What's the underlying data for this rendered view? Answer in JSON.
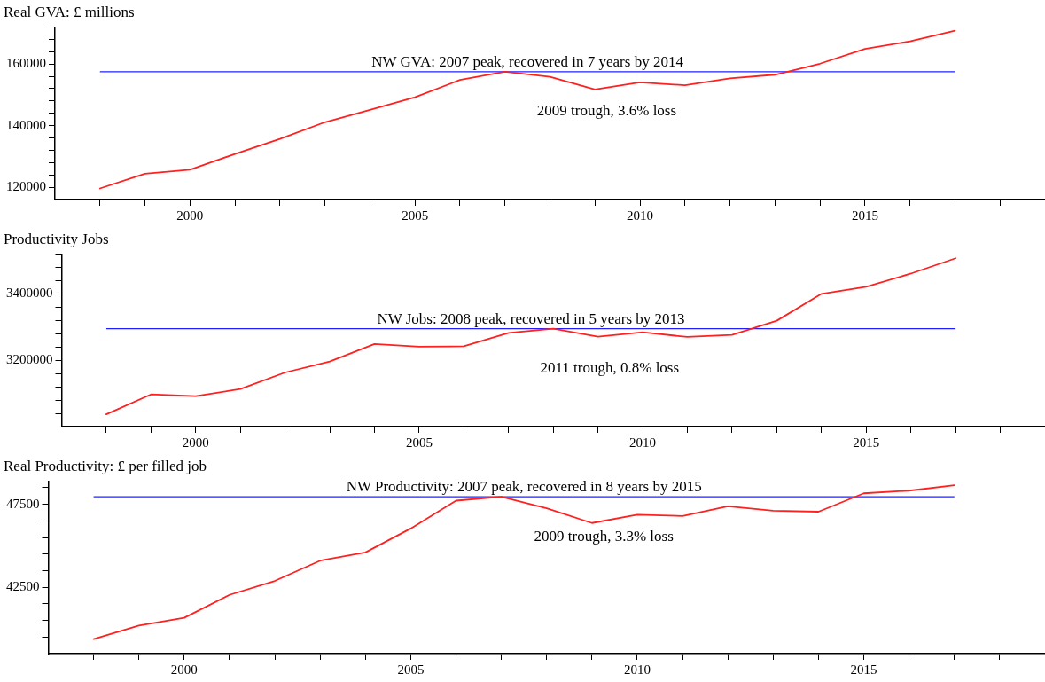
{
  "chart_data": [
    {
      "type": "line",
      "title": "Real GVA: £ millions",
      "x": [
        1998,
        1999,
        2000,
        2001,
        2002,
        2003,
        2004,
        2005,
        2006,
        2007,
        2008,
        2009,
        2010,
        2011,
        2012,
        2013,
        2014,
        2015,
        2016,
        2017
      ],
      "series": [
        {
          "color": "#ff2020",
          "values": [
            119600,
            124400,
            125700,
            130800,
            135700,
            141100,
            145100,
            149200,
            154800,
            157500,
            155800,
            151700,
            154000,
            153100,
            155300,
            156500,
            160100,
            164900,
            167300,
            170800
          ]
        }
      ],
      "xlim": [
        1997,
        2019
      ],
      "xticks": [
        {
          "value": 1998,
          "label": null
        },
        {
          "value": 1999,
          "label": null
        },
        2000,
        {
          "value": 2001,
          "label": null
        },
        {
          "value": 2002,
          "label": null
        },
        {
          "value": 2003,
          "label": null
        },
        {
          "value": 2004,
          "label": null
        },
        2005,
        {
          "value": 2006,
          "label": null
        },
        {
          "value": 2007,
          "label": null
        },
        {
          "value": 2008,
          "label": null
        },
        {
          "value": 2009,
          "label": null
        },
        2010,
        {
          "value": 2011,
          "label": null
        },
        {
          "value": 2012,
          "label": null
        },
        {
          "value": 2013,
          "label": null
        },
        {
          "value": 2014,
          "label": null
        },
        2015,
        {
          "value": 2016,
          "label": null
        },
        {
          "value": 2017,
          "label": null
        },
        {
          "value": 2018,
          "label": null
        }
      ],
      "ylim": [
        116000,
        172000
      ],
      "yticks": [
        120000,
        {
          "value": 124000,
          "label": null
        },
        {
          "value": 128000,
          "label": null
        },
        {
          "value": 132000,
          "label": null
        },
        {
          "value": 136000,
          "label": null
        },
        140000,
        {
          "value": 144000,
          "label": null
        },
        {
          "value": 148000,
          "label": null
        },
        {
          "value": 152000,
          "label": null
        },
        {
          "value": 156000,
          "label": null
        },
        160000,
        {
          "value": 164000,
          "label": null
        },
        {
          "value": 168000,
          "label": null
        },
        {
          "value": 172000,
          "label": null
        }
      ],
      "ref_lines": [
        {
          "axis": "y",
          "value": 157500,
          "color": "#2020ff"
        }
      ],
      "annotations": [
        "NW GVA: 2007 peak, recovered in 7 years by 2014",
        "2009 trough, 3.6% loss"
      ],
      "grid": false,
      "legend": false,
      "marker": "none",
      "line_style": "solid"
    },
    {
      "type": "line",
      "title": "Productivity Jobs",
      "x": [
        1998,
        1999,
        2000,
        2001,
        2002,
        2003,
        2004,
        2005,
        2006,
        2007,
        2008,
        2009,
        2010,
        2011,
        2012,
        2013,
        2014,
        2015,
        2016,
        2017
      ],
      "series": [
        {
          "color": "#ff2020",
          "values": [
            3037000,
            3097000,
            3092000,
            3113000,
            3163000,
            3196000,
            3249000,
            3241000,
            3242000,
            3282000,
            3295000,
            3271000,
            3284000,
            3270000,
            3276000,
            3319000,
            3400000,
            3421000,
            3461000,
            3507000
          ]
        }
      ],
      "xlim": [
        1997,
        2019
      ],
      "xticks": [
        {
          "value": 1998,
          "label": null
        },
        {
          "value": 1999,
          "label": null
        },
        2000,
        {
          "value": 2001,
          "label": null
        },
        {
          "value": 2002,
          "label": null
        },
        {
          "value": 2003,
          "label": null
        },
        {
          "value": 2004,
          "label": null
        },
        2005,
        {
          "value": 2006,
          "label": null
        },
        {
          "value": 2007,
          "label": null
        },
        {
          "value": 2008,
          "label": null
        },
        {
          "value": 2009,
          "label": null
        },
        2010,
        {
          "value": 2011,
          "label": null
        },
        {
          "value": 2012,
          "label": null
        },
        {
          "value": 2013,
          "label": null
        },
        {
          "value": 2014,
          "label": null
        },
        2015,
        {
          "value": 2016,
          "label": null
        },
        {
          "value": 2017,
          "label": null
        },
        {
          "value": 2018,
          "label": null
        }
      ],
      "ylim": [
        3000000,
        3520000
      ],
      "yticks": [
        {
          "value": 3040000,
          "label": null
        },
        {
          "value": 3080000,
          "label": null
        },
        {
          "value": 3120000,
          "label": null
        },
        {
          "value": 3160000,
          "label": null
        },
        3200000,
        {
          "value": 3240000,
          "label": null
        },
        {
          "value": 3280000,
          "label": null
        },
        {
          "value": 3320000,
          "label": null
        },
        {
          "value": 3360000,
          "label": null
        },
        3400000,
        {
          "value": 3440000,
          "label": null
        },
        {
          "value": 3480000,
          "label": null
        },
        {
          "value": 3520000,
          "label": null
        }
      ],
      "ref_lines": [
        {
          "axis": "y",
          "value": 3295000,
          "color": "#2020ff"
        }
      ],
      "annotations": [
        "NW Jobs: 2008 peak, recovered in 5 years by 2013",
        "2011 trough, 0.8% loss"
      ],
      "grid": false,
      "legend": false,
      "marker": "none",
      "line_style": "solid"
    },
    {
      "type": "line",
      "title": "Real Productivity: £ per filled job",
      "x": [
        1998,
        1999,
        2000,
        2001,
        2002,
        2003,
        2004,
        2005,
        2006,
        2007,
        2008,
        2009,
        2010,
        2011,
        2012,
        2013,
        2014,
        2015,
        2016,
        2017
      ],
      "series": [
        {
          "color": "#ff2020",
          "values": [
            39380,
            40190,
            40660,
            42040,
            42880,
            44100,
            44600,
            46040,
            47720,
            47950,
            47260,
            46370,
            46870,
            46790,
            47380,
            47110,
            47050,
            48160,
            48320,
            48650
          ]
        }
      ],
      "xlim": [
        1997,
        2019
      ],
      "xticks": [
        {
          "value": 1998,
          "label": null
        },
        {
          "value": 1999,
          "label": null
        },
        2000,
        {
          "value": 2001,
          "label": null
        },
        {
          "value": 2002,
          "label": null
        },
        {
          "value": 2003,
          "label": null
        },
        {
          "value": 2004,
          "label": null
        },
        2005,
        {
          "value": 2006,
          "label": null
        },
        {
          "value": 2007,
          "label": null
        },
        {
          "value": 2008,
          "label": null
        },
        {
          "value": 2009,
          "label": null
        },
        2010,
        {
          "value": 2011,
          "label": null
        },
        {
          "value": 2012,
          "label": null
        },
        {
          "value": 2013,
          "label": null
        },
        {
          "value": 2014,
          "label": null
        },
        2015,
        {
          "value": 2016,
          "label": null
        },
        {
          "value": 2017,
          "label": null
        },
        {
          "value": 2018,
          "label": null
        }
      ],
      "ylim": [
        38500,
        48900
      ],
      "yticks": [
        {
          "value": 39500,
          "label": null
        },
        {
          "value": 40500,
          "label": null
        },
        {
          "value": 41500,
          "label": null
        },
        42500,
        {
          "value": 43500,
          "label": null
        },
        {
          "value": 44500,
          "label": null
        },
        {
          "value": 45500,
          "label": null
        },
        {
          "value": 46500,
          "label": null
        },
        47500,
        {
          "value": 48500,
          "label": null
        }
      ],
      "ref_lines": [
        {
          "axis": "y",
          "value": 47950,
          "color": "#2020ff"
        }
      ],
      "annotations": [
        "NW Productivity: 2007 peak, recovered in 8 years by 2015",
        "2009 trough, 3.3% loss"
      ],
      "grid": false,
      "legend": false,
      "marker": "none",
      "line_style": "solid"
    }
  ]
}
